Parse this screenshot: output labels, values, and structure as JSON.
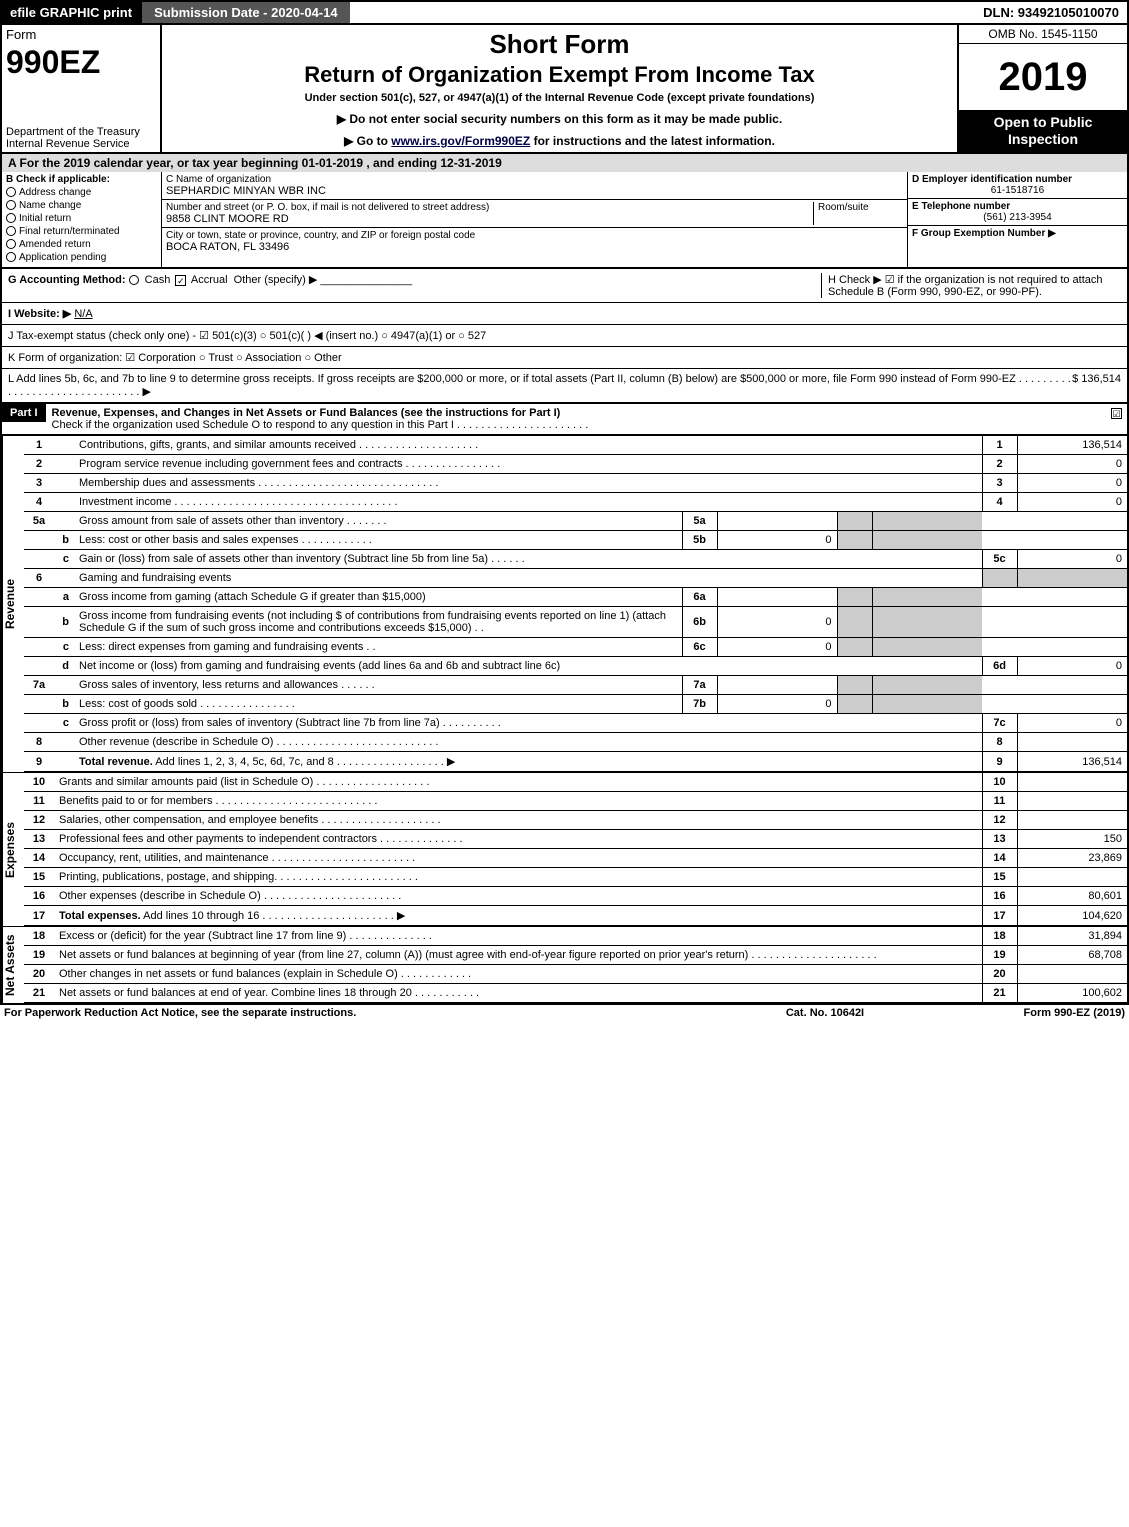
{
  "topbar": {
    "efile": "efile GRAPHIC print",
    "submission": "Submission Date - 2020-04-14",
    "dln": "DLN: 93492105010070"
  },
  "header": {
    "form_label": "Form",
    "form_no": "990EZ",
    "dept": "Department of the Treasury",
    "irs": "Internal Revenue Service",
    "title_short": "Short Form",
    "title_return": "Return of Organization Exempt From Income Tax",
    "title_under": "Under section 501(c), 527, or 4947(a)(1) of the Internal Revenue Code (except private foundations)",
    "instruct1": "▶ Do not enter social security numbers on this form as it may be made public.",
    "instruct2_pre": "▶ Go to ",
    "instruct2_link": "www.irs.gov/Form990EZ",
    "instruct2_post": " for instructions and the latest information.",
    "omb": "OMB No. 1545-1150",
    "year": "2019",
    "open": "Open to Public Inspection"
  },
  "period": "A For the 2019 calendar year, or tax year beginning 01-01-2019 , and ending 12-31-2019",
  "box_b": {
    "label": "B Check if applicable:",
    "items": [
      "Address change",
      "Name change",
      "Initial return",
      "Final return/terminated",
      "Amended return",
      "Application pending"
    ]
  },
  "box_c": {
    "name_label": "C Name of organization",
    "name": "SEPHARDIC MINYAN WBR INC",
    "addr_label": "Number and street (or P. O. box, if mail is not delivered to street address)",
    "room_label": "Room/suite",
    "addr": "9858 CLINT MOORE RD",
    "city_label": "City or town, state or province, country, and ZIP or foreign postal code",
    "city": "BOCA RATON, FL  33496"
  },
  "box_d": {
    "ein_label": "D Employer identification number",
    "ein": "61-1518716",
    "phone_label": "E Telephone number",
    "phone": "(561) 213-3954",
    "group_label": "F Group Exemption Number ▶"
  },
  "row_g": {
    "label": "G Accounting Method:",
    "cash": "Cash",
    "accrual": "Accrual",
    "other": "Other (specify) ▶"
  },
  "row_h": "H Check ▶ ☑ if the organization is not required to attach Schedule B (Form 990, 990-EZ, or 990-PF).",
  "row_i": {
    "label": "I Website: ▶",
    "value": "N/A"
  },
  "row_j": "J Tax-exempt status (check only one) - ☑ 501(c)(3)  ○ 501(c)( ) ◀ (insert no.)  ○ 4947(a)(1) or  ○ 527",
  "row_k": "K Form of organization:  ☑ Corporation  ○ Trust  ○ Association  ○ Other",
  "row_l": {
    "text": "L Add lines 5b, 6c, and 7b to line 9 to determine gross receipts. If gross receipts are $200,000 or more, or if total assets (Part II, column (B) below) are $500,000 or more, file Form 990 instead of Form 990-EZ . . . . . . . . . . . . . . . . . . . . . . . . . . . . . . . ▶ ",
    "amount": "$ 136,514"
  },
  "part1": {
    "label": "Part I",
    "title": "Revenue, Expenses, and Changes in Net Assets or Fund Balances (see the instructions for Part I)",
    "check_text": "Check if the organization used Schedule O to respond to any question in this Part I . . . . . . . . . . . . . . . . . . . . . .",
    "checked": "☑"
  },
  "section_labels": {
    "revenue": "Revenue",
    "expenses": "Expenses",
    "netassets": "Net Assets"
  },
  "revenue_lines": [
    {
      "n": "1",
      "sub": "",
      "desc": "Contributions, gifts, grants, and similar amounts received . . . . . . . . . . . . . . . . . . . .",
      "rn": "1",
      "rv": "136,514"
    },
    {
      "n": "2",
      "sub": "",
      "desc": "Program service revenue including government fees and contracts . . . . . . . . . . . . . . . .",
      "rn": "2",
      "rv": "0"
    },
    {
      "n": "3",
      "sub": "",
      "desc": "Membership dues and assessments . . . . . . . . . . . . . . . . . . . . . . . . . . . . . .",
      "rn": "3",
      "rv": "0"
    },
    {
      "n": "4",
      "sub": "",
      "desc": "Investment income . . . . . . . . . . . . . . . . . . . . . . . . . . . . . . . . . . . . .",
      "rn": "4",
      "rv": "0"
    },
    {
      "n": "5a",
      "sub": "",
      "desc": "Gross amount from sale of assets other than inventory . . . . . . .",
      "mn": "5a",
      "mv": "",
      "shaded": true
    },
    {
      "n": "",
      "sub": "b",
      "desc": "Less: cost or other basis and sales expenses . . . . . . . . . . . .",
      "mn": "5b",
      "mv": "0",
      "shaded": true
    },
    {
      "n": "",
      "sub": "c",
      "desc": "Gain or (loss) from sale of assets other than inventory (Subtract line 5b from line 5a) . . . . . .",
      "rn": "5c",
      "rv": "0"
    },
    {
      "n": "6",
      "sub": "",
      "desc": "Gaming and fundraising events",
      "shaded": true
    },
    {
      "n": "",
      "sub": "a",
      "desc": "Gross income from gaming (attach Schedule G if greater than $15,000)",
      "mn": "6a",
      "mv": "",
      "shaded": true
    },
    {
      "n": "",
      "sub": "b",
      "desc": "Gross income from fundraising events (not including $                    of contributions from fundraising events reported on line 1) (attach Schedule G if the sum of such gross income and contributions exceeds $15,000)   . .",
      "mn": "6b",
      "mv": "0",
      "shaded": true
    },
    {
      "n": "",
      "sub": "c",
      "desc": "Less: direct expenses from gaming and fundraising events    . .",
      "mn": "6c",
      "mv": "0",
      "shaded": true
    },
    {
      "n": "",
      "sub": "d",
      "desc": "Net income or (loss) from gaming and fundraising events (add lines 6a and 6b and subtract line 6c)",
      "rn": "6d",
      "rv": "0"
    },
    {
      "n": "7a",
      "sub": "",
      "desc": "Gross sales of inventory, less returns and allowances . . . . . .",
      "mn": "7a",
      "mv": "",
      "shaded": true
    },
    {
      "n": "",
      "sub": "b",
      "desc": "Less: cost of goods sold       . . . . . . . . . . . . . . . .",
      "mn": "7b",
      "mv": "0",
      "shaded": true
    },
    {
      "n": "",
      "sub": "c",
      "desc": "Gross profit or (loss) from sales of inventory (Subtract line 7b from line 7a) . . . . . . . . . .",
      "rn": "7c",
      "rv": "0"
    },
    {
      "n": "8",
      "sub": "",
      "desc": "Other revenue (describe in Schedule O) . . . . . . . . . . . . . . . . . . . . . . . . . . .",
      "rn": "8",
      "rv": ""
    },
    {
      "n": "9",
      "sub": "",
      "desc": "Total revenue. Add lines 1, 2, 3, 4, 5c, 6d, 7c, and 8  . . . . . . . . . . . . . . . . . .  ▶",
      "rn": "9",
      "rv": "136,514",
      "bold": true
    }
  ],
  "expense_lines": [
    {
      "n": "10",
      "desc": "Grants and similar amounts paid (list in Schedule O) . . . . . . . . . . . . . . . . . . .",
      "rn": "10",
      "rv": ""
    },
    {
      "n": "11",
      "desc": "Benefits paid to or for members      . . . . . . . . . . . . . . . . . . . . . . . . . . .",
      "rn": "11",
      "rv": ""
    },
    {
      "n": "12",
      "desc": "Salaries, other compensation, and employee benefits . . . . . . . . . . . . . . . . . . . .",
      "rn": "12",
      "rv": ""
    },
    {
      "n": "13",
      "desc": "Professional fees and other payments to independent contractors . . . . . . . . . . . . . .",
      "rn": "13",
      "rv": "150"
    },
    {
      "n": "14",
      "desc": "Occupancy, rent, utilities, and maintenance . . . . . . . . . . . . . . . . . . . . . . . .",
      "rn": "14",
      "rv": "23,869"
    },
    {
      "n": "15",
      "desc": "Printing, publications, postage, and shipping. . . . . . . . . . . . . . . . . . . . . . . .",
      "rn": "15",
      "rv": ""
    },
    {
      "n": "16",
      "desc": "Other expenses (describe in Schedule O)     . . . . . . . . . . . . . . . . . . . . . . .",
      "rn": "16",
      "rv": "80,601"
    },
    {
      "n": "17",
      "desc": "Total expenses. Add lines 10 through 16     . . . . . . . . . . . . . . . . . . . . . .  ▶",
      "rn": "17",
      "rv": "104,620",
      "bold": true
    }
  ],
  "netasset_lines": [
    {
      "n": "18",
      "desc": "Excess or (deficit) for the year (Subtract line 17 from line 9)      . . . . . . . . . . . . . .",
      "rn": "18",
      "rv": "31,894"
    },
    {
      "n": "19",
      "desc": "Net assets or fund balances at beginning of year (from line 27, column (A)) (must agree with end-of-year figure reported on prior year's return) . . . . . . . . . . . . . . . . . . . . .",
      "rn": "19",
      "rv": "68,708"
    },
    {
      "n": "20",
      "desc": "Other changes in net assets or fund balances (explain in Schedule O) . . . . . . . . . . . .",
      "rn": "20",
      "rv": ""
    },
    {
      "n": "21",
      "desc": "Net assets or fund balances at end of year. Combine lines 18 through 20 . . . . . . . . . . .",
      "rn": "21",
      "rv": "100,602"
    }
  ],
  "footer": {
    "left": "For Paperwork Reduction Act Notice, see the separate instructions.",
    "mid": "Cat. No. 10642I",
    "right": "Form 990-EZ (2019)"
  }
}
